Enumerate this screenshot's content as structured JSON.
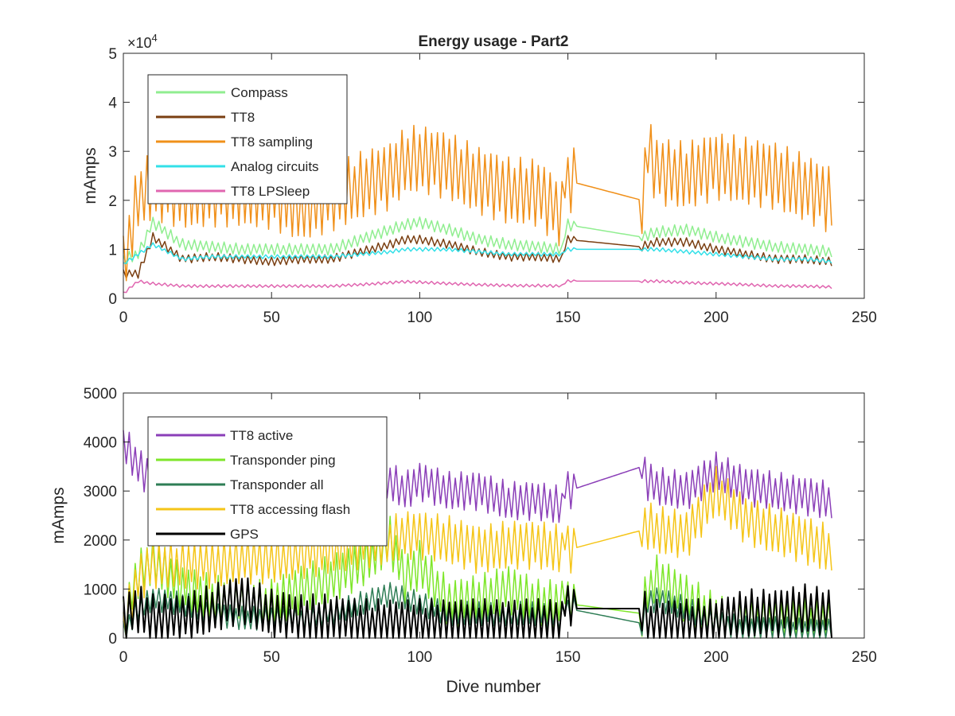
{
  "chart_data": [
    {
      "type": "line",
      "title": "Energy usage - Part2",
      "xlabel": "",
      "ylabel": "mAmps",
      "xlim": [
        0,
        250
      ],
      "ylim": [
        0,
        50000
      ],
      "y_exponent_label": "×10",
      "y_exponent_power": "4",
      "xticks": [
        "0",
        "50",
        "100",
        "150",
        "200",
        "250"
      ],
      "yticks": [
        "0",
        "1",
        "2",
        "3",
        "4",
        "5"
      ],
      "ytick_values": [
        0,
        10000,
        20000,
        30000,
        40000,
        50000
      ],
      "grid": false,
      "legend_position": "top-left",
      "x": [
        0,
        5,
        10,
        20,
        30,
        40,
        50,
        60,
        70,
        80,
        90,
        95,
        100,
        110,
        120,
        130,
        140,
        148,
        150,
        175,
        177,
        180,
        190,
        200,
        210,
        220,
        230,
        239
      ],
      "series": [
        {
          "name": "Compass",
          "color": "#90ee90",
          "values": [
            8000,
            9000,
            15500,
            11000,
            10500,
            10000,
            10000,
            10000,
            10000,
            12000,
            14000,
            15000,
            15500,
            14000,
            12000,
            11000,
            10500,
            10000,
            15000,
            12500,
            13000,
            13500,
            14000,
            12500,
            11500,
            10500,
            10000,
            9500
          ],
          "osc": 1200
        },
        {
          "name": "TT8",
          "color": "#7a3f12",
          "values": [
            5000,
            5000,
            12500,
            8000,
            8500,
            8000,
            7500,
            8000,
            8000,
            9500,
            11000,
            12000,
            12000,
            11000,
            9500,
            8500,
            8500,
            8000,
            12000,
            10500,
            11000,
            11500,
            11500,
            10000,
            9000,
            8000,
            8000,
            7500
          ],
          "osc": 900
        },
        {
          "name": "TT8 sampling",
          "color": "#f0901a",
          "values": [
            6000,
            21000,
            23000,
            21000,
            21500,
            21500,
            21000,
            18500,
            20500,
            23000,
            25000,
            28000,
            28500,
            27000,
            24000,
            22000,
            21500,
            17000,
            24000,
            20000,
            30500,
            26000,
            25000,
            27000,
            26000,
            25000,
            22500,
            20000
          ],
          "osc": 7000
        },
        {
          "name": "Analog circuits",
          "color": "#33e0e8",
          "values": [
            7000,
            9000,
            11000,
            8000,
            8500,
            8500,
            8500,
            8500,
            8500,
            9000,
            9500,
            10000,
            10000,
            10000,
            9500,
            9000,
            9000,
            9000,
            10000,
            10000,
            10000,
            10000,
            9500,
            9000,
            8500,
            8000,
            8000,
            7500
          ],
          "osc": 400
        },
        {
          "name": "TT8 LPSleep",
          "color": "#e066b0",
          "values": [
            1000,
            3500,
            3000,
            2500,
            2500,
            2500,
            2500,
            2500,
            2500,
            2800,
            3200,
            3400,
            3300,
            3000,
            2800,
            2600,
            2600,
            2500,
            3500,
            3500,
            3500,
            3500,
            3200,
            3000,
            2800,
            2500,
            2500,
            2300
          ],
          "osc": 300
        }
      ]
    },
    {
      "type": "line",
      "title": "",
      "xlabel": "Dive number",
      "ylabel": "mAmps",
      "xlim": [
        0,
        250
      ],
      "ylim": [
        0,
        5000
      ],
      "xticks": [
        "0",
        "50",
        "100",
        "150",
        "200",
        "250"
      ],
      "yticks": [
        "0",
        "1000",
        "2000",
        "3000",
        "4000",
        "5000"
      ],
      "ytick_values": [
        0,
        1000,
        2000,
        3000,
        4000,
        5000
      ],
      "grid": false,
      "legend_position": "top-left",
      "x": [
        0,
        5,
        10,
        20,
        30,
        40,
        50,
        60,
        70,
        80,
        90,
        95,
        100,
        110,
        120,
        130,
        140,
        148,
        150,
        175,
        177,
        180,
        190,
        200,
        210,
        220,
        230,
        239
      ],
      "series": [
        {
          "name": "TT8 active",
          "color": "#8b3fb8",
          "values": [
            4000,
            3500,
            3200,
            3000,
            3000,
            3000,
            3000,
            3000,
            3000,
            3000,
            3200,
            3000,
            3200,
            3000,
            3000,
            2800,
            2800,
            2700,
            3000,
            3500,
            3200,
            3100,
            3000,
            3400,
            3100,
            3000,
            2900,
            2800
          ],
          "osc": 400
        },
        {
          "name": "Transponder ping",
          "color": "#7ee62a",
          "values": [
            300,
            1300,
            1600,
            1000,
            800,
            700,
            700,
            1000,
            1200,
            1500,
            2000,
            1200,
            1500,
            700,
            800,
            1000,
            700,
            700,
            700,
            500,
            1000,
            1200,
            800,
            400,
            300,
            300,
            300,
            300
          ],
          "osc": 500
        },
        {
          "name": "Transponder all",
          "color": "#2e7d55",
          "values": [
            100,
            600,
            800,
            700,
            500,
            400,
            400,
            400,
            500,
            700,
            900,
            800,
            700,
            500,
            500,
            500,
            500,
            400,
            600,
            300,
            700,
            800,
            600,
            300,
            200,
            200,
            150,
            150
          ],
          "osc": 250
        },
        {
          "name": "TT8 accessing flash",
          "color": "#f5c518",
          "values": [
            200,
            1200,
            1500,
            1500,
            1500,
            1600,
            1600,
            1700,
            1800,
            1900,
            2000,
            2100,
            2100,
            2000,
            1800,
            1900,
            1900,
            1800,
            1800,
            2200,
            2300,
            2200,
            2100,
            3000,
            2400,
            2200,
            2000,
            1800
          ],
          "osc": 500
        },
        {
          "name": "GPS",
          "color": "#000000",
          "values": [
            400,
            600,
            400,
            400,
            600,
            800,
            500,
            400,
            400,
            300,
            300,
            300,
            300,
            300,
            300,
            300,
            300,
            300,
            600,
            600,
            300,
            300,
            300,
            300,
            500,
            500,
            600,
            500
          ],
          "osc": 500
        }
      ]
    }
  ]
}
